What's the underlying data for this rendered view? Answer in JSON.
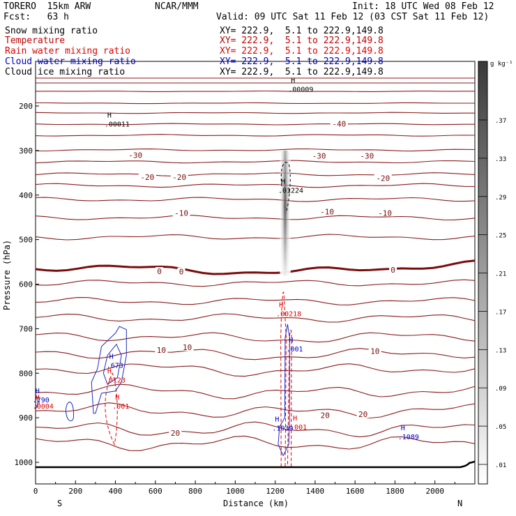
{
  "header": {
    "model": "TORERO  15km ARW",
    "org": "NCAR/MMM",
    "init": "Init: 18 UTC Wed 08 Feb 12",
    "fcst": "Fcst:   63 h",
    "valid": "Valid: 09 UTC Sat 11 Feb 12 (03 CST Sat 11 Feb 12)"
  },
  "legend": [
    {
      "label": "Snow mixing ratio",
      "xy": "XY= 222.9,  5.1 to 222.9,149.8",
      "color": "#000000"
    },
    {
      "label": "Temperature",
      "xy": "XY= 222.9,  5.1 to 222.9,149.8",
      "color": "#c00000"
    },
    {
      "label": "Rain water mixing ratio",
      "xy": "XY= 222.9,  5.1 to 222.9,149.8",
      "color": "#e00000"
    },
    {
      "label": "Cloud water mixing ratio",
      "xy": "XY= 222.9,  5.1 to 222.9,149.8",
      "color": "#0000c0"
    },
    {
      "label": "Cloud ice mixing ratio",
      "xy": "XY= 222.9,  5.1 to 222.9,149.8",
      "color": "#000000"
    }
  ],
  "chart_data": {
    "type": "contour",
    "xlabel": "Distance (km)",
    "ylabel": "Pressure (hPa)",
    "xlim": [
      0,
      2200
    ],
    "ylim": [
      1050,
      100
    ],
    "x_ticks": [
      0,
      200,
      400,
      600,
      800,
      1000,
      1200,
      1400,
      1600,
      1800,
      2000
    ],
    "y_ticks": [
      200,
      300,
      400,
      500,
      600,
      700,
      800,
      900,
      1000
    ],
    "x_end_labels": {
      "left": "S",
      "right": "N"
    },
    "colorbar": {
      "unit": "g kg⁻¹",
      "ticks": [
        ".01",
        ".05",
        ".09",
        ".13",
        ".17",
        ".21",
        ".25",
        ".29",
        ".33",
        ".37"
      ]
    },
    "temperature_labels": [
      {
        "text": "-40",
        "x": 1520,
        "p": 240
      },
      {
        "text": "-30",
        "x": 500,
        "p": 310
      },
      {
        "text": "-30",
        "x": 1420,
        "p": 312
      },
      {
        "text": "-30",
        "x": 1660,
        "p": 312
      },
      {
        "text": "-20",
        "x": 560,
        "p": 360
      },
      {
        "text": "-20",
        "x": 720,
        "p": 360
      },
      {
        "text": "-20",
        "x": 1740,
        "p": 362
      },
      {
        "text": "-10",
        "x": 730,
        "p": 440
      },
      {
        "text": "-10",
        "x": 1460,
        "p": 437
      },
      {
        "text": "-10",
        "x": 1750,
        "p": 440
      },
      {
        "text": "0",
        "x": 620,
        "p": 571
      },
      {
        "text": "0",
        "x": 730,
        "p": 572
      },
      {
        "text": "0",
        "x": 1790,
        "p": 568
      },
      {
        "text": "10",
        "x": 630,
        "p": 748
      },
      {
        "text": "10",
        "x": 760,
        "p": 742
      },
      {
        "text": "10",
        "x": 1700,
        "p": 750
      },
      {
        "text": "20",
        "x": 700,
        "p": 934
      },
      {
        "text": "20",
        "x": 1450,
        "p": 894
      },
      {
        "text": "20",
        "x": 1640,
        "p": 892
      }
    ],
    "maxima": [
      {
        "text": ".00009",
        "x": 1300,
        "p": 165,
        "color": "#000000"
      },
      {
        "text": ".00011",
        "x": 380,
        "p": 243,
        "color": "#000000"
      },
      {
        "text": ".01224",
        "x": 1250,
        "p": 392,
        "color": "#000000"
      },
      {
        "text": ".00218",
        "x": 1240,
        "p": 669,
        "color": "#e00000"
      },
      {
        "text": ".001",
        "x": 1290,
        "p": 748,
        "color": "#0000c0"
      },
      {
        "text": ".673",
        "x": 390,
        "p": 785,
        "color": "#0000c0"
      },
      {
        "text": ".0123",
        "x": 380,
        "p": 818,
        "color": "#e00000"
      },
      {
        "text": ".001",
        "x": 420,
        "p": 876,
        "color": "#e00000"
      },
      {
        "text": ".790",
        "x": 20,
        "p": 862,
        "color": "#0000c0"
      },
      {
        "text": ".0004",
        "x": 20,
        "p": 876,
        "color": "#e00000"
      },
      {
        "text": ".001",
        "x": 1310,
        "p": 923,
        "color": "#e00000"
      },
      {
        "text": ".1039",
        "x": 1220,
        "p": 926,
        "color": "#0000c0"
      },
      {
        "text": ".1089",
        "x": 1850,
        "p": 945,
        "color": "#0000c0"
      }
    ]
  }
}
